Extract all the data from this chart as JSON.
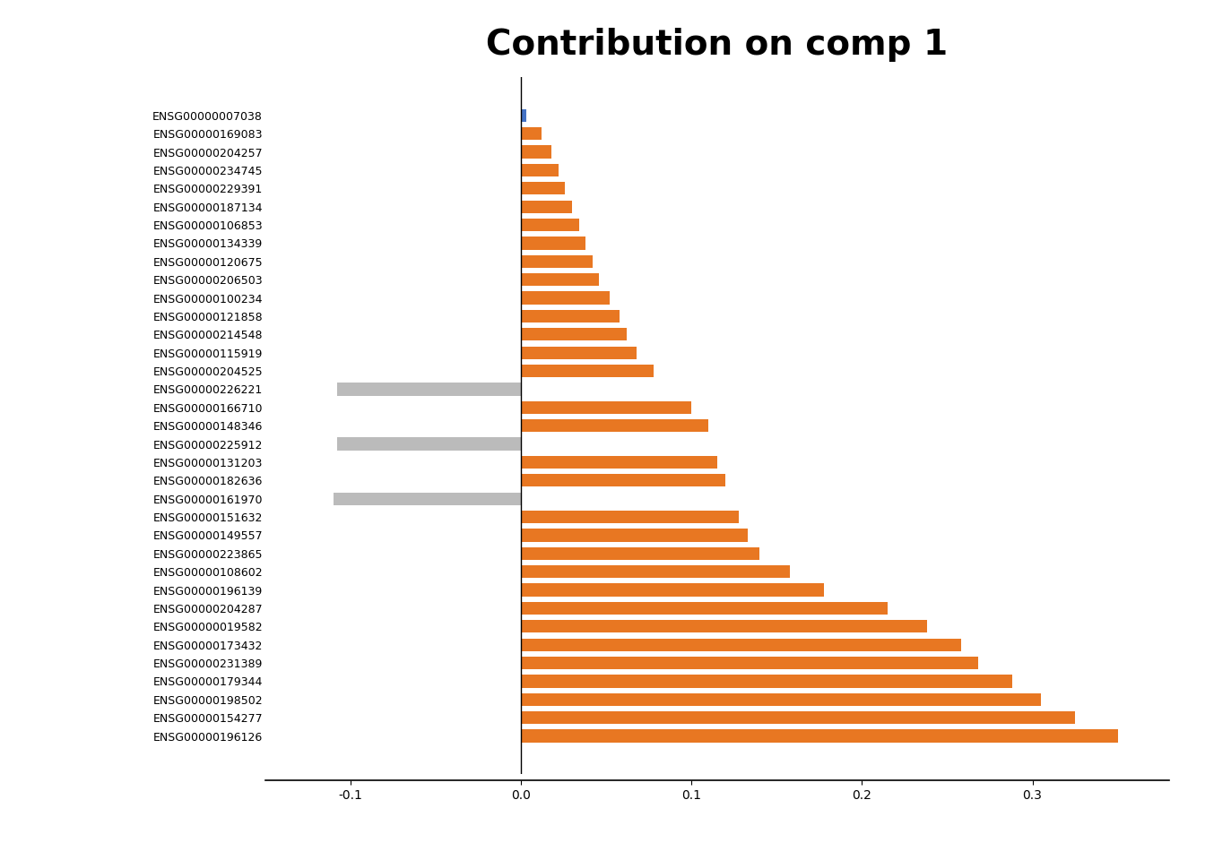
{
  "title": "Contribution on comp 1",
  "title_fontsize": 28,
  "title_fontweight": "bold",
  "categories": [
    "ENSG00000007038",
    "ENSG00000169083",
    "ENSG00000204257",
    "ENSG00000234745",
    "ENSG00000229391",
    "ENSG00000187134",
    "ENSG00000106853",
    "ENSG00000134339",
    "ENSG00000120675",
    "ENSG00000206503",
    "ENSG00000100234",
    "ENSG00000121858",
    "ENSG00000214548",
    "ENSG00000115919",
    "ENSG00000204525",
    "ENSG00000226221",
    "ENSG00000166710",
    "ENSG00000148346",
    "ENSG00000225912",
    "ENSG00000131203",
    "ENSG00000182636",
    "ENSG00000161970",
    "ENSG00000151632",
    "ENSG00000149557",
    "ENSG00000223865",
    "ENSG00000108602",
    "ENSG00000196139",
    "ENSG00000204287",
    "ENSG00000019582",
    "ENSG00000173432",
    "ENSG00000231389",
    "ENSG00000179344",
    "ENSG00000198502",
    "ENSG00000154277",
    "ENSG00000196126"
  ],
  "values": [
    0.003,
    0.012,
    0.018,
    0.022,
    0.026,
    0.03,
    0.034,
    0.038,
    0.042,
    0.046,
    0.052,
    0.058,
    0.062,
    0.068,
    0.078,
    -0.108,
    0.1,
    0.11,
    -0.108,
    0.115,
    0.12,
    -0.11,
    0.128,
    0.133,
    0.14,
    0.158,
    0.178,
    0.215,
    0.238,
    0.258,
    0.268,
    0.288,
    0.305,
    0.325,
    0.35
  ],
  "colors": [
    "#4472C4",
    "#E87722",
    "#E87722",
    "#E87722",
    "#E87722",
    "#E87722",
    "#E87722",
    "#E87722",
    "#E87722",
    "#E87722",
    "#E87722",
    "#E87722",
    "#E87722",
    "#E87722",
    "#E87722",
    "#BBBBBB",
    "#E87722",
    "#E87722",
    "#BBBBBB",
    "#E87722",
    "#E87722",
    "#BBBBBB",
    "#E87722",
    "#E87722",
    "#E87722",
    "#E87722",
    "#E87722",
    "#E87722",
    "#E87722",
    "#E87722",
    "#E87722",
    "#E87722",
    "#E87722",
    "#E87722",
    "#E87722"
  ],
  "xlim": [
    -0.15,
    0.38
  ],
  "xticks": [
    -0.1,
    0.0,
    0.1,
    0.2,
    0.3
  ],
  "xticklabels": [
    "-0.1",
    "0.0",
    "0.1",
    "0.2",
    "0.3"
  ],
  "background_color": "#ffffff",
  "label_fontsize": 9,
  "tick_fontsize": 14
}
